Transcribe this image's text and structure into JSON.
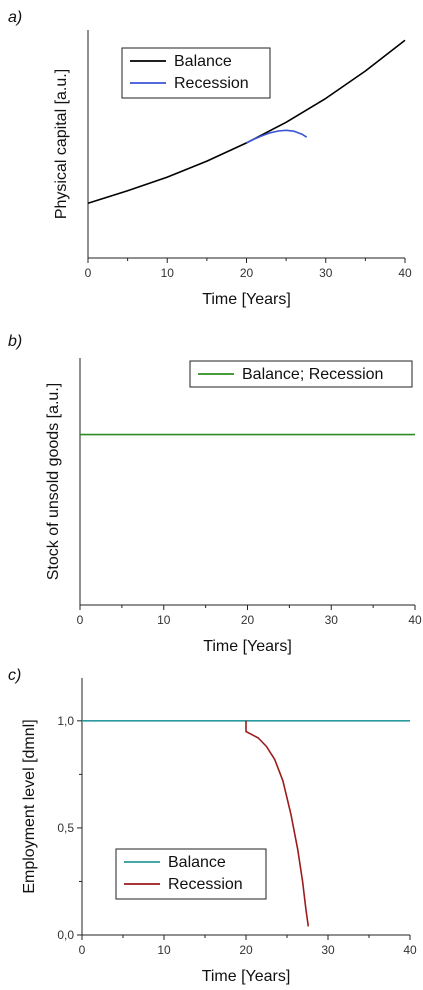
{
  "chart_data": [
    {
      "panel": "a)",
      "type": "line",
      "xlabel": "Time [Years]",
      "ylabel": "Physical capital [a.u.]",
      "xlim": [
        0,
        40
      ],
      "ylim": [
        0,
        10
      ],
      "xticks": [
        0,
        10,
        20,
        30,
        40
      ],
      "yticks": [],
      "legend": "top-left",
      "grid": false,
      "series": [
        {
          "name": "Balance",
          "color": "#000000",
          "x": [
            0,
            5,
            10,
            15,
            20,
            25,
            30,
            35,
            40
          ],
          "y": [
            2.4,
            2.95,
            3.55,
            4.25,
            5.05,
            5.95,
            7.0,
            8.2,
            9.55
          ]
        },
        {
          "name": "Recession",
          "color": "#3a55d6",
          "x": [
            20,
            21,
            22,
            23,
            24,
            25,
            26,
            27,
            27.6
          ],
          "y": [
            5.05,
            5.22,
            5.37,
            5.49,
            5.57,
            5.6,
            5.56,
            5.43,
            5.3
          ]
        }
      ]
    },
    {
      "panel": "b)",
      "type": "line",
      "xlabel": "Time [Years]",
      "ylabel": "Stock of unsold goods [a.u.]",
      "xlim": [
        0,
        40
      ],
      "ylim": [
        0,
        10
      ],
      "xticks": [
        0,
        10,
        20,
        30,
        40
      ],
      "yticks": [],
      "legend": "top-right",
      "grid": false,
      "series": [
        {
          "name": "Balance; Recession",
          "color": "#2e8b22",
          "x": [
            0,
            40
          ],
          "y": [
            6.9,
            6.9
          ]
        }
      ]
    },
    {
      "panel": "c)",
      "type": "line",
      "xlabel": "Time [Years]",
      "ylabel": "Employment level [dmnl]",
      "xlim": [
        0,
        40
      ],
      "ylim": [
        0,
        1.2
      ],
      "xticks": [
        0,
        10,
        20,
        30,
        40
      ],
      "yticks": [
        0,
        0.5,
        1.0
      ],
      "ytick_labels": [
        "0,0",
        "0,5",
        "1,0"
      ],
      "legend": "bottom-left",
      "grid": false,
      "series": [
        {
          "name": "Balance",
          "color": "#2b9a9e",
          "x": [
            0,
            40
          ],
          "y": [
            1.0,
            1.0
          ]
        },
        {
          "name": "Recession",
          "color": "#9b1c1c",
          "x": [
            20,
            20,
            20.5,
            21.5,
            22.5,
            23.5,
            24.5,
            25.5,
            26.3,
            26.9,
            27.3,
            27.6
          ],
          "y": [
            1.0,
            0.95,
            0.94,
            0.92,
            0.88,
            0.82,
            0.72,
            0.56,
            0.4,
            0.25,
            0.12,
            0.04
          ]
        }
      ]
    }
  ]
}
